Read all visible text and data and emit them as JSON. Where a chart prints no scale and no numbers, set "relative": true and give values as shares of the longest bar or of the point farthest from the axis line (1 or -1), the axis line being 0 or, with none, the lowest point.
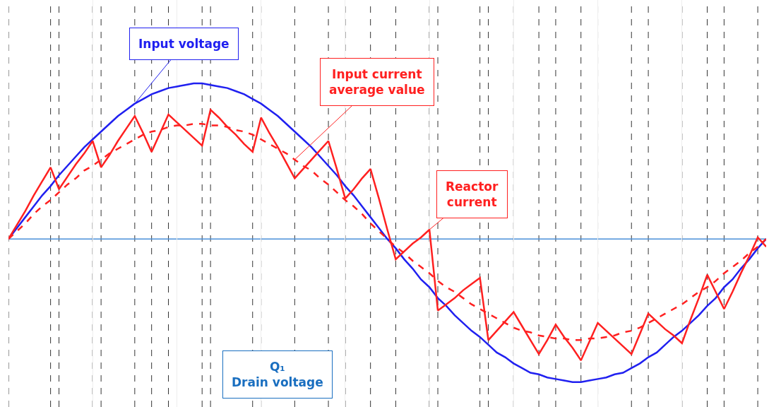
{
  "chart_data": {
    "type": "line",
    "relative": true,
    "grid": "x",
    "ref_lines": [
      {
        "axis": "y",
        "value": 0,
        "color": "#4a90d9",
        "line_style": "solid"
      }
    ],
    "legend": false,
    "marker": "none",
    "annotations": [
      "Q₁\nDrain voltage"
    ],
    "categories": [
      null,
      null,
      null,
      null,
      null,
      null,
      null,
      null,
      null,
      null,
      null,
      null,
      null,
      null,
      null,
      null,
      null,
      null,
      null,
      null,
      null,
      null,
      null,
      null,
      null,
      null,
      null,
      null,
      null,
      null,
      null,
      null,
      null,
      null,
      null,
      null,
      null,
      null,
      null,
      null,
      null,
      null,
      null,
      null,
      null,
      null,
      null,
      null,
      null,
      null,
      null,
      null,
      null,
      null,
      null,
      null,
      null,
      null,
      null,
      null,
      null,
      null,
      null,
      null,
      null,
      null,
      null,
      null,
      null,
      null,
      null,
      null,
      null,
      null,
      null,
      null,
      null,
      null,
      null,
      null,
      null,
      null,
      null,
      null,
      null,
      null,
      null,
      null,
      null,
      null,
      null
    ],
    "series": [
      {
        "name": "Input voltage",
        "color": "#2020f0",
        "line_style": "solid",
        "values": [
          0,
          0.07,
          0.14,
          0.21,
          0.28,
          0.34,
          0.41,
          0.47,
          0.53,
          0.59,
          0.64,
          0.69,
          0.74,
          0.79,
          0.83,
          0.87,
          0.9,
          0.93,
          0.95,
          0.97,
          0.98,
          0.99,
          1,
          1,
          0.99,
          0.98,
          0.97,
          0.95,
          0.93,
          0.9,
          0.87,
          0.83,
          0.79,
          0.74,
          0.69,
          0.64,
          0.59,
          0.53,
          0.47,
          0.41,
          0.34,
          0.28,
          0.21,
          0.14,
          0.07,
          0,
          -0.06,
          -0.13,
          -0.19,
          -0.26,
          -0.31,
          -0.38,
          -0.43,
          -0.49,
          -0.54,
          -0.59,
          -0.63,
          -0.68,
          -0.73,
          -0.76,
          -0.8,
          -0.83,
          -0.86,
          -0.87,
          -0.89,
          -0.9,
          -0.91,
          -0.92,
          -0.92,
          -0.91,
          -0.9,
          -0.89,
          -0.87,
          -0.86,
          -0.83,
          -0.8,
          -0.76,
          -0.73,
          -0.68,
          -0.63,
          -0.59,
          -0.54,
          -0.49,
          -0.43,
          -0.38,
          -0.31,
          -0.26,
          -0.19,
          -0.13,
          -0.06,
          0
        ]
      },
      {
        "name": "Input current\naverage value",
        "color": "#ff2020",
        "line_style": "dashed",
        "values": [
          0,
          0.05,
          0.1,
          0.16,
          0.21,
          0.25,
          0.3,
          0.35,
          0.39,
          0.44,
          0.47,
          0.51,
          0.55,
          0.58,
          0.61,
          0.64,
          0.67,
          0.69,
          0.7,
          0.72,
          0.73,
          0.73,
          0.74,
          0.74,
          0.73,
          0.73,
          0.72,
          0.7,
          0.69,
          0.67,
          0.64,
          0.61,
          0.58,
          0.55,
          0.51,
          0.47,
          0.44,
          0.39,
          0.35,
          0.3,
          0.25,
          0.21,
          0.16,
          0.1,
          0.05,
          0,
          -0.05,
          -0.09,
          -0.14,
          -0.18,
          -0.22,
          -0.27,
          -0.31,
          -0.34,
          -0.38,
          -0.42,
          -0.45,
          -0.48,
          -0.51,
          -0.54,
          -0.57,
          -0.59,
          -0.6,
          -0.62,
          -0.63,
          -0.64,
          -0.64,
          -0.65,
          -0.65,
          -0.64,
          -0.64,
          -0.63,
          -0.62,
          -0.6,
          -0.59,
          -0.57,
          -0.54,
          -0.51,
          -0.48,
          -0.45,
          -0.42,
          -0.38,
          -0.34,
          -0.31,
          -0.27,
          -0.22,
          -0.18,
          -0.14,
          -0.09,
          -0.05,
          0
        ]
      },
      {
        "name": "Reactor\ncurrent",
        "color": "#ff2020",
        "line_style": "solid",
        "values": [
          0,
          0.09,
          0.18,
          0.28,
          0.37,
          0.46,
          0.32,
          0.4,
          0.48,
          0.55,
          0.63,
          0.46,
          0.54,
          0.63,
          0.71,
          0.79,
          0.68,
          0.56,
          0.68,
          0.8,
          0.75,
          0.7,
          0.65,
          0.6,
          0.83,
          0.78,
          0.72,
          0.67,
          0.61,
          0.56,
          0.78,
          0.68,
          0.59,
          0.49,
          0.39,
          0.45,
          0.51,
          0.57,
          0.63,
          0.45,
          0.26,
          0.32,
          0.39,
          0.45,
          0.26,
          0.06,
          -0.13,
          -0.08,
          -0.03,
          0.01,
          0.06,
          -0.46,
          -0.42,
          -0.38,
          -0.33,
          -0.29,
          -0.25,
          -0.65,
          -0.59,
          -0.53,
          -0.47,
          -0.56,
          -0.65,
          -0.74,
          -0.65,
          -0.55,
          -0.63,
          -0.7,
          -0.78,
          -0.66,
          -0.54,
          -0.59,
          -0.64,
          -0.69,
          -0.74,
          -0.61,
          -0.48,
          -0.53,
          -0.58,
          -0.62,
          -0.67,
          -0.52,
          -0.38,
          -0.23,
          -0.34,
          -0.45,
          -0.34,
          -0.22,
          -0.11,
          0.01,
          -0.05
        ]
      }
    ]
  }
}
